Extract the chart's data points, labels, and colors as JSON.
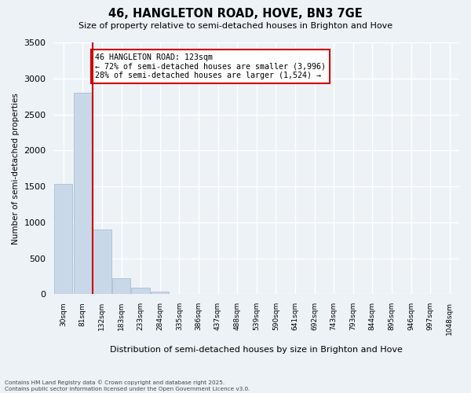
{
  "title": "46, HANGLETON ROAD, HOVE, BN3 7GE",
  "subtitle": "Size of property relative to semi-detached houses in Brighton and Hove",
  "xlabel": "Distribution of semi-detached houses by size in Brighton and Hove",
  "ylabel": "Number of semi-detached properties",
  "bar_color": "#c8d8e8",
  "bar_edge_color": "#a0b8cc",
  "bin_labels": [
    "30sqm",
    "81sqm",
    "132sqm",
    "183sqm",
    "233sqm",
    "284sqm",
    "335sqm",
    "386sqm",
    "437sqm",
    "488sqm",
    "539sqm",
    "590sqm",
    "641sqm",
    "692sqm",
    "743sqm",
    "793sqm",
    "844sqm",
    "895sqm",
    "946sqm",
    "997sqm",
    "1048sqm"
  ],
  "bar_values": [
    1530,
    2800,
    900,
    220,
    90,
    38,
    8,
    0,
    0,
    0,
    0,
    0,
    0,
    0,
    0,
    0,
    0,
    0,
    0,
    0,
    0
  ],
  "vline_bin_index": 1,
  "annotation_title": "46 HANGLETON ROAD: 123sqm",
  "annotation_line1": "← 72% of semi-detached houses are smaller (3,996)",
  "annotation_line2": "28% of semi-detached houses are larger (1,524) →",
  "ylim": [
    0,
    3500
  ],
  "yticks": [
    0,
    500,
    1000,
    1500,
    2000,
    2500,
    3000,
    3500
  ],
  "background_color": "#edf2f7",
  "grid_color": "#ffffff",
  "vline_color": "#cc0000",
  "footer_line1": "Contains HM Land Registry data © Crown copyright and database right 2025.",
  "footer_line2": "Contains public sector information licensed under the Open Government Licence v3.0."
}
